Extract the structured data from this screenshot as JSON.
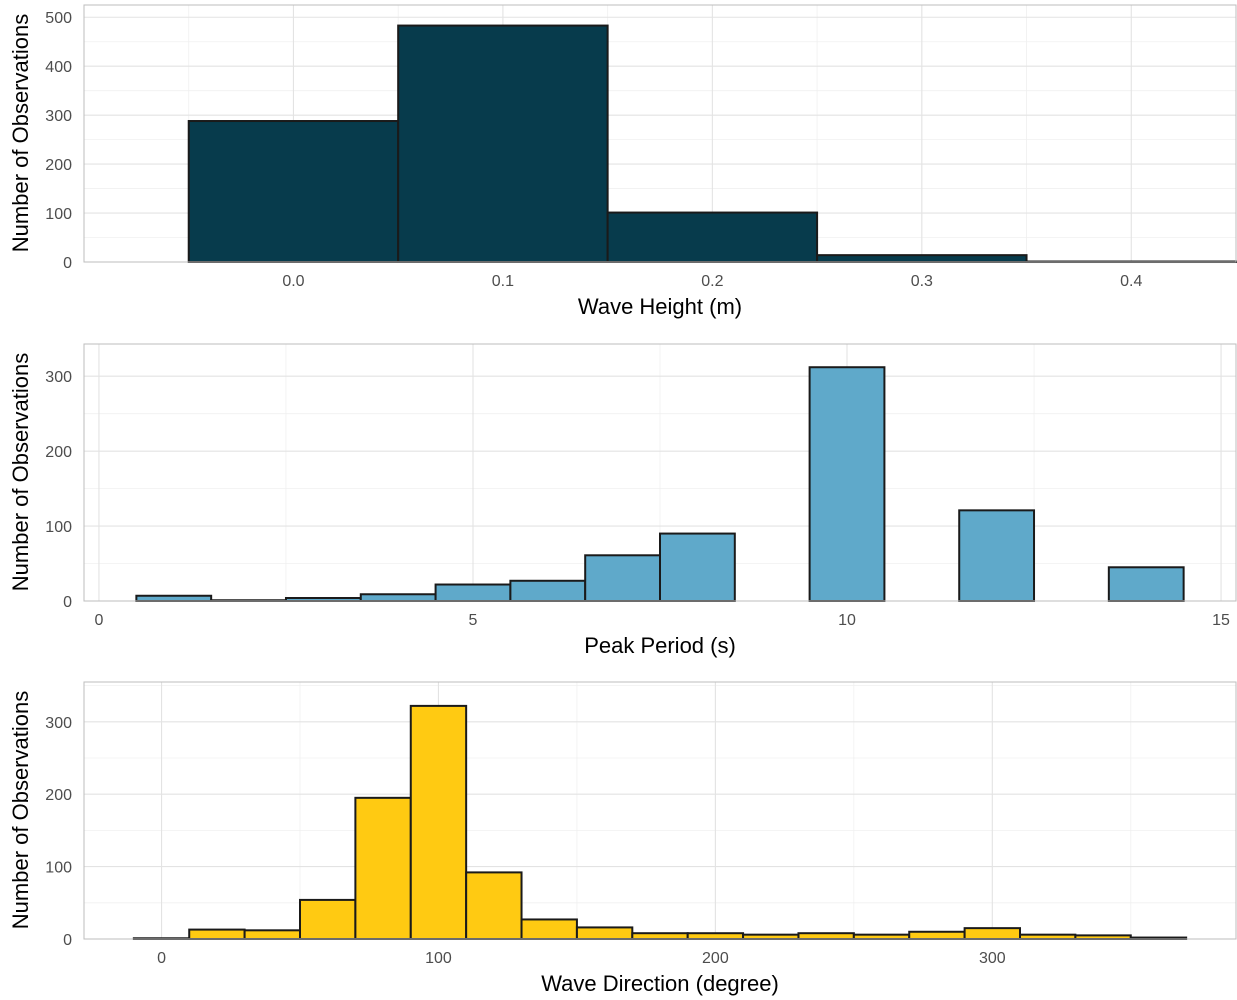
{
  "chart_data": [
    {
      "type": "bar",
      "title": "",
      "xlabel": "Wave Height (m)",
      "ylabel": "Number of Observations",
      "fill": "#073B4C",
      "bin_width": 0.1,
      "bin_centers": [
        0.0,
        0.1,
        0.2,
        0.3,
        0.4
      ],
      "values": [
        288,
        483,
        101,
        14,
        1
      ],
      "xlim": [
        -0.1,
        0.45
      ],
      "ylim": [
        0,
        525
      ],
      "x_ticks": [
        0.0,
        0.1,
        0.2,
        0.3,
        0.4
      ],
      "x_tick_labels": [
        "0.0",
        "0.1",
        "0.2",
        "0.3",
        "0.4"
      ],
      "y_ticks": [
        0,
        100,
        200,
        300,
        400,
        500
      ],
      "y_tick_labels": [
        "0",
        "100",
        "200",
        "300",
        "400",
        "500"
      ],
      "grid": true
    },
    {
      "type": "bar",
      "title": "",
      "xlabel": "Peak Period (s)",
      "ylabel": "Number of Observations",
      "fill": "#5FA9CA",
      "bin_width": 1,
      "bin_centers": [
        1,
        2,
        3,
        4,
        5,
        6,
        7,
        8,
        9,
        10,
        11,
        12,
        13,
        14
      ],
      "values": [
        7,
        1,
        4,
        9,
        22,
        27,
        61,
        90,
        0,
        312,
        0,
        121,
        0,
        45
      ],
      "xlim": [
        -0.2,
        15.2
      ],
      "ylim": [
        0,
        343
      ],
      "x_ticks": [
        0,
        5,
        10,
        15
      ],
      "x_tick_labels": [
        "0",
        "5",
        "10",
        "15"
      ],
      "y_ticks": [
        0,
        100,
        200,
        300
      ],
      "y_tick_labels": [
        "0",
        "100",
        "200",
        "300"
      ],
      "grid": true
    },
    {
      "type": "bar",
      "title": "",
      "xlabel": "Wave Direction (degree)",
      "ylabel": "Number of Observations",
      "fill": "#FFCA12",
      "bin_width": 20,
      "bin_centers": [
        0,
        20,
        40,
        60,
        80,
        100,
        120,
        140,
        160,
        180,
        200,
        220,
        240,
        260,
        280,
        300,
        320,
        340,
        360
      ],
      "values": [
        1,
        13,
        12,
        54,
        195,
        322,
        92,
        27,
        16,
        8,
        8,
        6,
        8,
        6,
        10,
        15,
        6,
        5,
        2
      ],
      "xlim": [
        -28,
        388
      ],
      "ylim": [
        0,
        355
      ],
      "x_ticks": [
        0,
        100,
        200,
        300
      ],
      "x_tick_labels": [
        "0",
        "100",
        "200",
        "300"
      ],
      "y_ticks": [
        0,
        100,
        200,
        300
      ],
      "y_tick_labels": [
        "0",
        "100",
        "200",
        "300"
      ],
      "grid": true
    }
  ]
}
